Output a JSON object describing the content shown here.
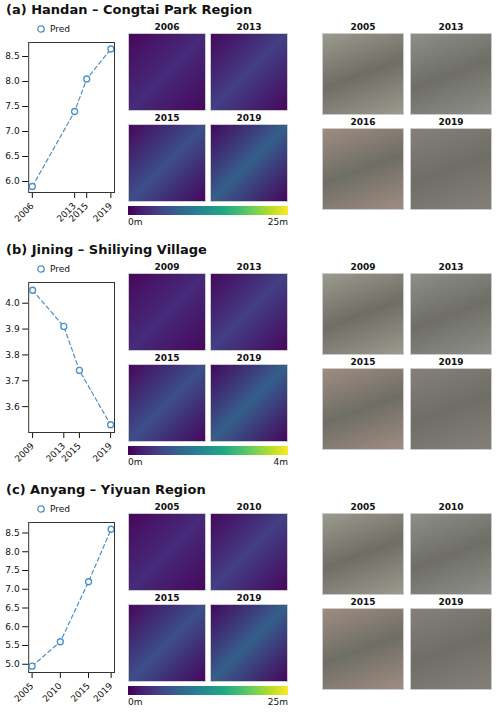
{
  "chart_data": [
    {
      "type": "line",
      "title": "(a) Handan – Congtai Park Region",
      "x": [
        2006,
        2013,
        2015,
        2019
      ],
      "xlim": [
        2005.4,
        2019.6
      ],
      "xticks": [
        2006,
        2013,
        2015,
        2019
      ],
      "series": [
        {
          "name": "Pred",
          "color": "#4a90c8",
          "marker": "circle",
          "line_style": "dashed",
          "values": [
            5.9,
            7.4,
            8.05,
            8.65
          ]
        }
      ],
      "ylim": [
        5.78,
        8.78
      ],
      "yticks": [
        {
          "value": 6,
          "label": "6.0"
        },
        {
          "value": 6.5,
          "label": "6.5"
        },
        {
          "value": 7,
          "label": "7.0"
        },
        {
          "value": 7.5,
          "label": "7.5"
        },
        {
          "value": 8,
          "label": "8.0"
        },
        {
          "value": 8.5,
          "label": "8.5"
        }
      ],
      "legend": "top",
      "height_maps": {
        "titles": [
          "2006",
          "2013",
          "2015",
          "2019"
        ],
        "colorbar_range": [
          0,
          25
        ],
        "colorbar_ticks": [
          {
            "value": 0,
            "label": "0m"
          },
          {
            "value": 25,
            "label": "25m"
          }
        ]
      },
      "images": {
        "titles": [
          "2005",
          "2013",
          "2016",
          "2019"
        ]
      }
    },
    {
      "type": "line",
      "title": "(b) Jining – Shiliying Village",
      "x": [
        2009,
        2013,
        2015,
        2019
      ],
      "xlim": [
        2008.5,
        2019.5
      ],
      "xticks": [
        2009,
        2013,
        2015,
        2019
      ],
      "series": [
        {
          "name": "Pred",
          "color": "#4a90c8",
          "marker": "circle",
          "line_style": "dashed",
          "values": [
            4.05,
            3.91,
            3.74,
            3.53
          ]
        }
      ],
      "ylim": [
        3.5,
        4.08
      ],
      "yticks": [
        3.6,
        3.7,
        3.8,
        3.9,
        {
          "value": 4,
          "label": "4.0"
        }
      ],
      "legend": "top",
      "height_maps": {
        "titles": [
          "2009",
          "2013",
          "2015",
          "2019"
        ],
        "colorbar_range": [
          0,
          4
        ],
        "colorbar_ticks": [
          {
            "value": 0,
            "label": "0m"
          },
          {
            "value": 4,
            "label": "4m"
          }
        ]
      },
      "images": {
        "titles": [
          "2009",
          "2013",
          "2015",
          "2019"
        ]
      }
    },
    {
      "type": "line",
      "title": "(c) Anyang – Yiyuan Region",
      "x": [
        2005,
        2010,
        2015,
        2019
      ],
      "xlim": [
        2004.4,
        2019.6
      ],
      "xticks": [
        2005,
        2010,
        2015,
        2019
      ],
      "series": [
        {
          "name": "Pred",
          "color": "#4a90c8",
          "marker": "circle",
          "line_style": "dashed",
          "values": [
            4.95,
            5.6,
            7.2,
            8.6
          ]
        }
      ],
      "ylim": [
        4.78,
        8.78
      ],
      "yticks": [
        {
          "value": 5,
          "label": "5.0"
        },
        {
          "value": 5.5,
          "label": "5.5"
        },
        {
          "value": 6,
          "label": "6.0"
        },
        {
          "value": 6.5,
          "label": "6.5"
        },
        {
          "value": 7,
          "label": "7.0"
        },
        {
          "value": 7.5,
          "label": "7.5"
        },
        {
          "value": 8,
          "label": "8.0"
        },
        {
          "value": 8.5,
          "label": "8.5"
        }
      ],
      "legend": "top",
      "height_maps": {
        "titles": [
          "2005",
          "2010",
          "2015",
          "2019"
        ],
        "colorbar_range": [
          0,
          25
        ],
        "colorbar_ticks": [
          {
            "value": 0,
            "label": "0m"
          },
          {
            "value": 25,
            "label": "25m"
          }
        ]
      },
      "images": {
        "titles": [
          "2005",
          "2010",
          "2015",
          "2019"
        ]
      }
    }
  ]
}
